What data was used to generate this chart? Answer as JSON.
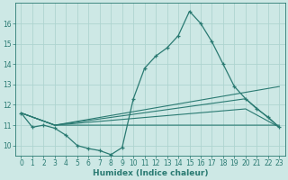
{
  "xlabel": "Humidex (Indice chaleur)",
  "background_color": "#cde8e5",
  "grid_color": "#aed4d0",
  "line_color": "#2a7a72",
  "xlim": [
    -0.5,
    23.5
  ],
  "ylim": [
    9.5,
    17.0
  ],
  "xticks": [
    0,
    1,
    2,
    3,
    4,
    5,
    6,
    7,
    8,
    9,
    10,
    11,
    12,
    13,
    14,
    15,
    16,
    17,
    18,
    19,
    20,
    21,
    22,
    23
  ],
  "yticks": [
    10,
    11,
    12,
    13,
    14,
    15,
    16
  ],
  "line1_x": [
    0,
    1,
    2,
    3,
    4,
    5,
    6,
    7,
    8,
    9,
    10,
    11,
    12,
    13,
    14,
    15,
    16,
    17,
    18,
    19,
    20,
    21,
    22,
    23
  ],
  "line1_y": [
    11.6,
    10.9,
    11.0,
    10.85,
    10.5,
    10.0,
    9.85,
    9.75,
    9.55,
    9.9,
    12.3,
    13.8,
    14.4,
    14.8,
    15.4,
    16.6,
    16.0,
    15.1,
    14.0,
    12.9,
    12.3,
    11.8,
    11.4,
    10.9
  ],
  "line2_x": [
    0,
    3,
    23
  ],
  "line2_y": [
    11.6,
    11.0,
    12.9
  ],
  "line3_x": [
    0,
    3,
    20,
    23
  ],
  "line3_y": [
    11.6,
    11.0,
    12.3,
    10.9
  ],
  "line4_x": [
    0,
    3,
    20,
    23
  ],
  "line4_y": [
    11.6,
    11.0,
    11.8,
    10.9
  ],
  "line5_x": [
    0,
    3,
    23
  ],
  "line5_y": [
    11.6,
    11.0,
    11.0
  ]
}
